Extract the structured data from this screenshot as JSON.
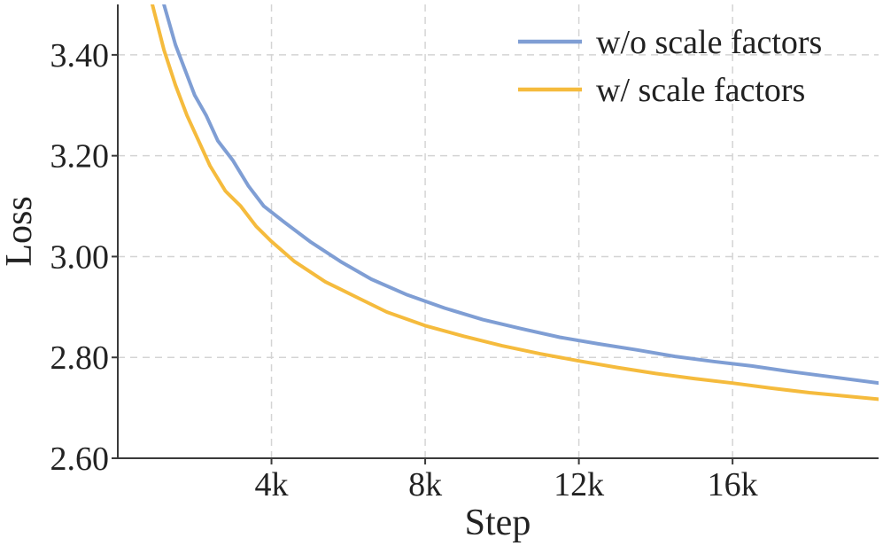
{
  "chart_data": {
    "type": "line",
    "title": "",
    "xlabel": "Step",
    "ylabel": "Loss",
    "xlim": [
      0,
      19800
    ],
    "ylim": [
      2.6,
      3.5
    ],
    "xticks": [
      4000,
      8000,
      12000,
      16000
    ],
    "xtick_labels": [
      "4k",
      "8k",
      "12k",
      "16k"
    ],
    "yticks": [
      2.6,
      2.8,
      3.0,
      3.2,
      3.4
    ],
    "ytick_labels": [
      "2.60",
      "2.80",
      "3.00",
      "3.20",
      "3.40"
    ],
    "grid": true,
    "legend_position": "top-right",
    "series": [
      {
        "name": "w/o scale factors",
        "color": "#7f9ed4",
        "x": [
          1200,
          1500,
          1800,
          2000,
          2300,
          2600,
          3000,
          3400,
          3800,
          4300,
          5000,
          5800,
          6600,
          7500,
          8500,
          9500,
          10500,
          11500,
          12500,
          13500,
          14500,
          15500,
          16500,
          17500,
          18500,
          19800
        ],
        "y": [
          3.5,
          3.42,
          3.36,
          3.32,
          3.28,
          3.23,
          3.19,
          3.14,
          3.1,
          3.07,
          3.03,
          2.99,
          2.955,
          2.925,
          2.898,
          2.875,
          2.857,
          2.84,
          2.827,
          2.815,
          2.802,
          2.792,
          2.783,
          2.772,
          2.762,
          2.749
        ]
      },
      {
        "name": "w/ scale factors",
        "color": "#f5bb3d",
        "x": [
          900,
          1200,
          1500,
          1800,
          2100,
          2400,
          2800,
          3200,
          3600,
          4000,
          4600,
          5400,
          6200,
          7000,
          8000,
          9000,
          10000,
          11000,
          12000,
          13000,
          14000,
          15000,
          16000,
          17000,
          18000,
          19800
        ],
        "y": [
          3.5,
          3.41,
          3.34,
          3.28,
          3.23,
          3.18,
          3.13,
          3.1,
          3.06,
          3.03,
          2.99,
          2.95,
          2.92,
          2.89,
          2.863,
          2.842,
          2.823,
          2.807,
          2.793,
          2.78,
          2.768,
          2.758,
          2.749,
          2.739,
          2.73,
          2.717
        ]
      }
    ]
  }
}
